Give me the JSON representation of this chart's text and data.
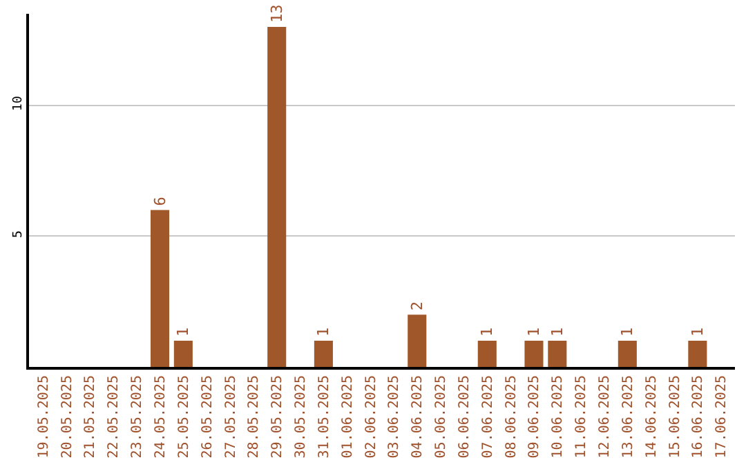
{
  "chart_data": {
    "type": "bar",
    "categories": [
      "19.05.2025",
      "20.05.2025",
      "21.05.2025",
      "22.05.2025",
      "23.05.2025",
      "24.05.2025",
      "25.05.2025",
      "26.05.2025",
      "27.05.2025",
      "28.05.2025",
      "29.05.2025",
      "30.05.2025",
      "31.05.2025",
      "01.06.2025",
      "02.06.2025",
      "03.06.2025",
      "04.06.2025",
      "05.06.2025",
      "06.06.2025",
      "07.06.2025",
      "08.06.2025",
      "09.06.2025",
      "10.06.2025",
      "11.06.2025",
      "12.06.2025",
      "13.06.2025",
      "14.06.2025",
      "15.06.2025",
      "16.06.2025",
      "17.06.2025"
    ],
    "values": [
      0,
      0,
      0,
      0,
      0,
      6,
      1,
      0,
      0,
      0,
      13,
      0,
      1,
      0,
      0,
      0,
      2,
      0,
      0,
      1,
      0,
      1,
      1,
      0,
      0,
      1,
      0,
      0,
      1,
      0
    ],
    "value_labels": [
      null,
      null,
      null,
      null,
      null,
      "6",
      "1",
      null,
      null,
      null,
      "13",
      null,
      "1",
      null,
      null,
      null,
      "2",
      null,
      null,
      "1",
      null,
      "1",
      "1",
      null,
      null,
      "1",
      null,
      null,
      "1",
      null
    ],
    "color": "#a0582a",
    "ylim": [
      0,
      13.5
    ],
    "yticks": [
      5,
      10
    ],
    "grid": "y"
  }
}
